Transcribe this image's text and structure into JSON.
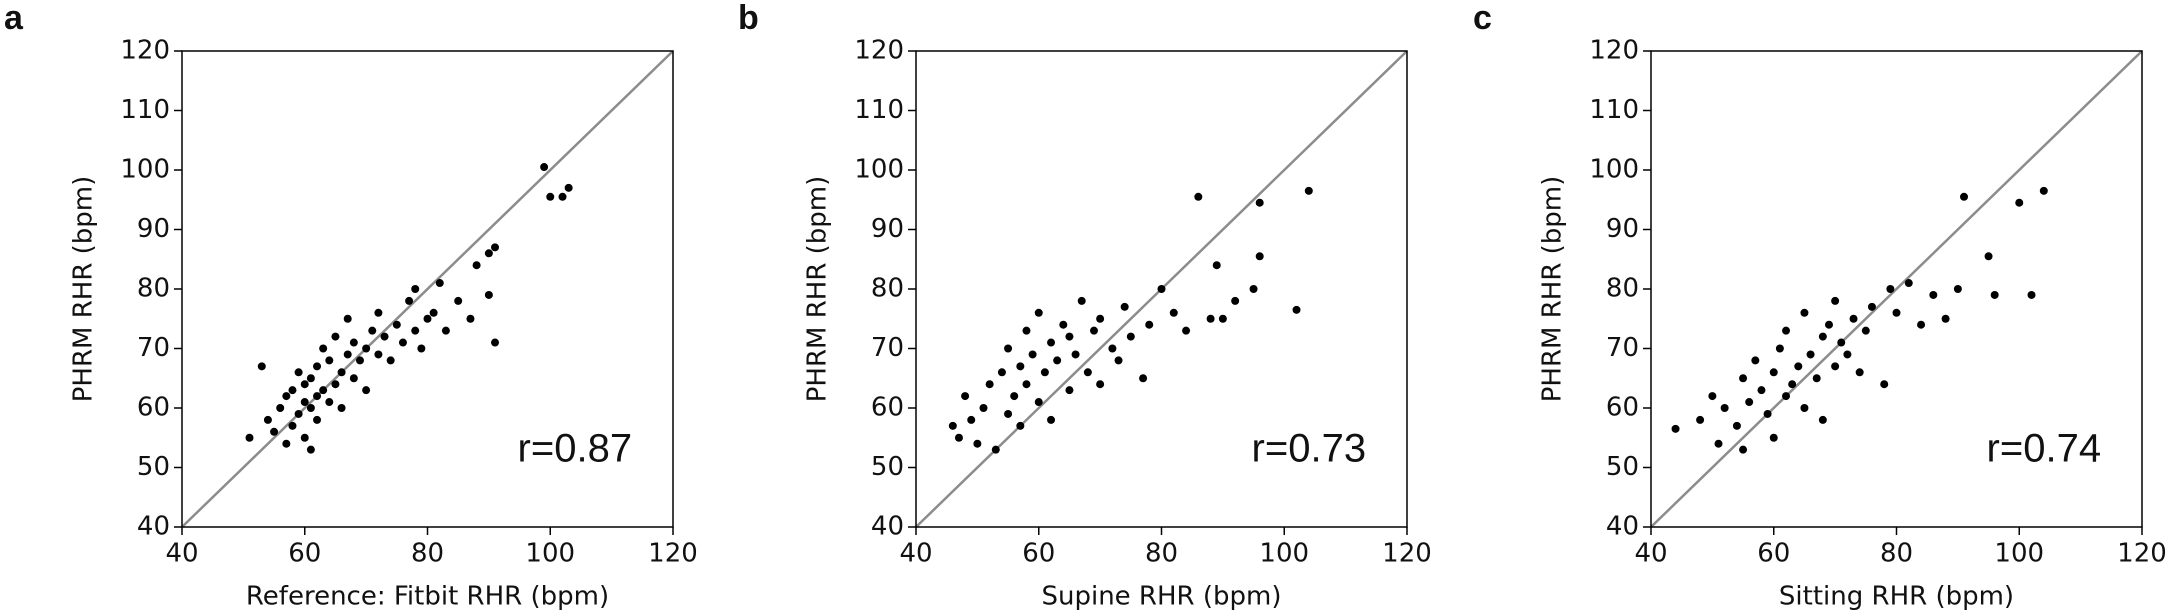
{
  "chart_data": [
    {
      "type": "scatter",
      "title": "a",
      "xlabel": "Reference: Fitbit RHR (bpm)",
      "ylabel": "PHRM RHR (bpm)",
      "annotation": "r=0.87",
      "color": "#000000",
      "identity_line_color": "#8c8c8c",
      "xlim": [
        40,
        120
      ],
      "ylim": [
        40,
        120
      ],
      "xticks": [
        40,
        60,
        80,
        100,
        120
      ],
      "yticks": [
        40,
        50,
        60,
        70,
        80,
        90,
        100,
        110,
        120
      ],
      "x": [
        51,
        53,
        54,
        55,
        56,
        57,
        57,
        58,
        58,
        59,
        59,
        60,
        60,
        60,
        61,
        61,
        61,
        62,
        62,
        62,
        63,
        63,
        64,
        64,
        65,
        65,
        66,
        66,
        67,
        67,
        68,
        68,
        69,
        70,
        70,
        71,
        72,
        72,
        73,
        74,
        75,
        76,
        77,
        78,
        78,
        79,
        80,
        81,
        82,
        83,
        85,
        87,
        88,
        90,
        90,
        91,
        91,
        99,
        100,
        102,
        103
      ],
      "y": [
        55,
        67,
        58,
        56,
        60,
        62,
        54,
        57,
        63,
        59,
        66,
        55,
        61,
        64,
        53,
        60,
        65,
        58,
        67,
        62,
        63,
        70,
        61,
        68,
        64,
        72,
        66,
        60,
        69,
        75,
        65,
        71,
        68,
        70,
        63,
        73,
        69,
        76,
        72,
        68,
        74,
        71,
        78,
        73,
        80,
        70,
        75,
        76,
        81,
        73,
        78,
        75,
        84,
        86,
        79,
        71,
        87,
        100.5,
        95.5,
        95.5,
        97
      ]
    },
    {
      "type": "scatter",
      "title": "b",
      "xlabel": "Supine RHR (bpm)",
      "ylabel": "PHRM RHR (bpm)",
      "annotation": "r=0.73",
      "color": "#000000",
      "identity_line_color": "#8c8c8c",
      "xlim": [
        40,
        120
      ],
      "ylim": [
        40,
        120
      ],
      "xticks": [
        40,
        60,
        80,
        100,
        120
      ],
      "yticks": [
        40,
        50,
        60,
        70,
        80,
        90,
        100,
        110,
        120
      ],
      "x": [
        46,
        47,
        48,
        49,
        50,
        51,
        52,
        53,
        54,
        55,
        55,
        56,
        57,
        57,
        58,
        58,
        59,
        60,
        60,
        61,
        62,
        62,
        63,
        64,
        65,
        65,
        66,
        67,
        68,
        69,
        70,
        70,
        72,
        73,
        74,
        75,
        77,
        78,
        80,
        82,
        84,
        86,
        88,
        89,
        90,
        92,
        95,
        96,
        96,
        102,
        104
      ],
      "y": [
        57,
        55,
        62,
        58,
        54,
        60,
        64,
        53,
        66,
        59,
        70,
        62,
        67,
        57,
        73,
        64,
        69,
        61,
        76,
        66,
        71,
        58,
        68,
        74,
        63,
        72,
        69,
        78,
        66,
        73,
        64,
        75,
        70,
        68,
        77,
        72,
        65,
        74,
        80,
        76,
        73,
        95.5,
        75,
        84,
        75,
        78,
        80,
        94.5,
        85.5,
        76.5,
        96.5
      ]
    },
    {
      "type": "scatter",
      "title": "c",
      "xlabel": "Sitting RHR (bpm)",
      "ylabel": "PHRM RHR (bpm)",
      "annotation": "r=0.74",
      "color": "#000000",
      "identity_line_color": "#8c8c8c",
      "xlim": [
        40,
        120
      ],
      "ylim": [
        40,
        120
      ],
      "xticks": [
        40,
        60,
        80,
        100,
        120
      ],
      "yticks": [
        40,
        50,
        60,
        70,
        80,
        90,
        100,
        110,
        120
      ],
      "x": [
        44,
        48,
        50,
        51,
        52,
        54,
        55,
        55,
        56,
        57,
        58,
        59,
        60,
        60,
        61,
        62,
        62,
        63,
        64,
        65,
        65,
        66,
        67,
        68,
        68,
        69,
        70,
        70,
        71,
        72,
        73,
        74,
        75,
        76,
        78,
        79,
        80,
        82,
        84,
        86,
        88,
        90,
        91,
        95,
        96,
        100,
        102,
        104
      ],
      "y": [
        56.5,
        58,
        62,
        54,
        60,
        57,
        65,
        53,
        61,
        68,
        63,
        59,
        66,
        55,
        70,
        62,
        73,
        64,
        67,
        60,
        76,
        69,
        65,
        72,
        58,
        74,
        67,
        78,
        71,
        69,
        75,
        66,
        73,
        77,
        64,
        80,
        76,
        81,
        74,
        79,
        75,
        80,
        95.5,
        85.5,
        79,
        94.5,
        79,
        96.5
      ]
    }
  ]
}
